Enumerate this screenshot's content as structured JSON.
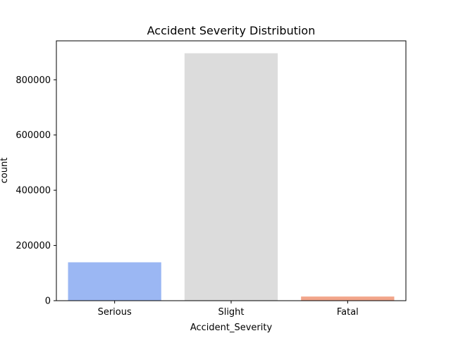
{
  "chart_data": {
    "type": "bar",
    "title": "Accident Severity Distribution",
    "xlabel": "Accident_Severity",
    "ylabel": "count",
    "categories": [
      "Serious",
      "Slight",
      "Fatal"
    ],
    "values": [
      139000,
      896000,
      15000
    ],
    "colors": [
      "#9bb7f3",
      "#dcdcdc",
      "#f2a68b"
    ],
    "ylim": [
      0,
      941000
    ],
    "yticks": [
      0,
      200000,
      400000,
      600000,
      800000
    ],
    "ytick_labels": [
      "0",
      "200000",
      "400000",
      "600000",
      "800000"
    ],
    "grid": false,
    "legend": "none"
  }
}
